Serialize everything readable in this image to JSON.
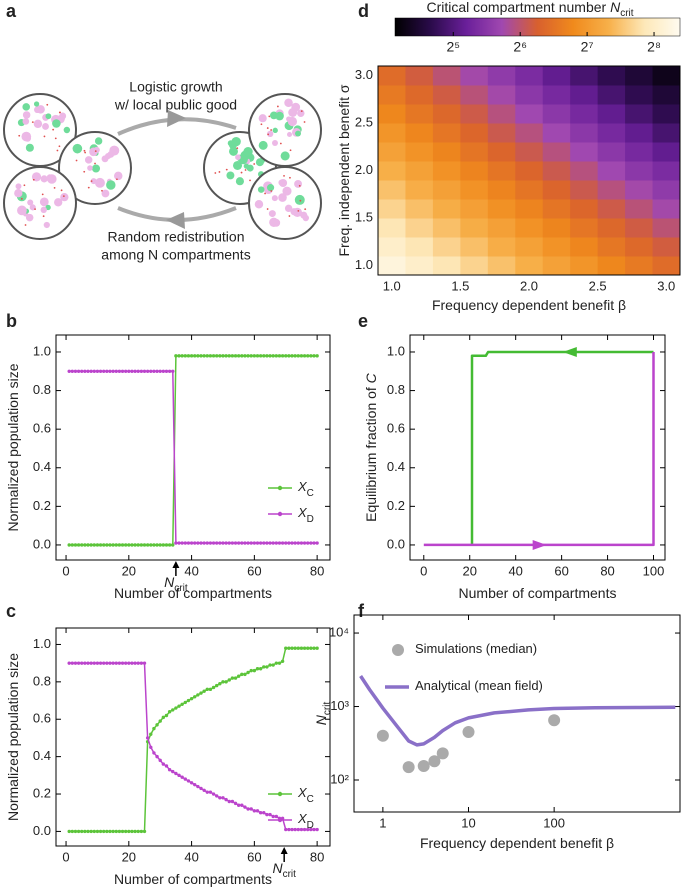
{
  "panel_a": {
    "label": "a",
    "top_text": [
      "Logistic growth",
      "w/ local public good"
    ],
    "bottom_text": [
      "Random redistribution",
      "among N compartments"
    ]
  },
  "chart_data": [
    {
      "type": "heatmap",
      "label": "d",
      "colorbar_title": "Critical compartment number ",
      "colorbar_title_var": "N",
      "colorbar_title_sub": "crit",
      "clim": [
        17.5,
        335
      ],
      "colorbar_log": true,
      "colorbar_ticks": [
        {
          "value": 32,
          "label": "2⁵"
        },
        {
          "value": 64,
          "label": "2⁶"
        },
        {
          "value": 128,
          "label": "2⁷"
        },
        {
          "value": 256,
          "label": "2⁸"
        }
      ],
      "colormap": [
        "#000000",
        "#2a0b4a",
        "#6a1f9a",
        "#a048b0",
        "#d8602e",
        "#f08a1c",
        "#f7b04a",
        "#fde8b8",
        "#fffbf0"
      ],
      "xlabel": "Frequency dependent benefit β",
      "ylabel": "Freq. independent benefit σ",
      "xlim": [
        0.9,
        3.1
      ],
      "ylim": [
        0.9,
        3.1
      ],
      "xticks": [
        {
          "value": 1,
          "label": "1.0"
        },
        {
          "value": 1.5,
          "label": "1.5"
        },
        {
          "value": 2,
          "label": "2.0"
        },
        {
          "value": 2.5,
          "label": "2.5"
        },
        {
          "value": 3,
          "label": "3.0"
        }
      ],
      "yticks": [
        {
          "value": 1,
          "label": "1.0"
        },
        {
          "value": 1.5,
          "label": "1.5"
        },
        {
          "value": 2,
          "label": "2.0"
        },
        {
          "value": 2.5,
          "label": "2.5"
        },
        {
          "value": 3,
          "label": "3.0"
        }
      ],
      "x": [
        1.0,
        1.2,
        1.4,
        1.6,
        1.8,
        2.0,
        2.2,
        2.4,
        2.6,
        2.8,
        3.0
      ],
      "y": [
        1.0,
        1.2,
        1.4,
        1.6,
        1.8,
        2.0,
        2.2,
        2.4,
        2.6,
        2.8,
        3.0
      ],
      "values": [
        [
          294,
          260,
          229,
          202,
          179,
          158,
          139,
          123,
          108,
          96,
          85
        ],
        [
          260,
          229,
          201,
          177,
          156,
          138,
          121,
          107,
          94,
          83,
          73
        ],
        [
          229,
          201,
          177,
          155,
          137,
          120,
          106,
          93,
          82,
          72,
          63
        ],
        [
          202,
          177,
          155,
          136,
          119,
          105,
          92,
          81,
          71,
          62,
          54
        ],
        [
          179,
          156,
          137,
          120,
          105,
          92,
          80,
          70,
          61,
          54,
          47
        ],
        [
          158,
          138,
          120,
          105,
          92,
          80,
          70,
          61,
          53,
          46,
          41
        ],
        [
          139,
          121,
          106,
          92,
          80,
          70,
          61,
          53,
          46,
          40,
          35
        ],
        [
          123,
          107,
          93,
          81,
          70,
          61,
          53,
          46,
          40,
          35,
          30
        ],
        [
          108,
          94,
          82,
          71,
          61,
          53,
          46,
          40,
          35,
          30,
          26
        ],
        [
          96,
          83,
          72,
          62,
          54,
          46,
          40,
          35,
          30,
          26,
          23
        ],
        [
          85,
          73,
          63,
          54,
          47,
          41,
          35,
          30,
          26,
          23,
          20
        ]
      ]
    },
    {
      "type": "line",
      "label": "b",
      "xlabel": "Number of compartments",
      "ylabel": "Normalized population size",
      "xlim": [
        -3.2,
        84.1
      ],
      "ylim": [
        -0.078,
        1.088
      ],
      "xticks": [
        0,
        20,
        40,
        60,
        80
      ],
      "yticks": [
        {
          "value": 0,
          "label": "0.0"
        },
        {
          "value": 0.2,
          "label": "0.2"
        },
        {
          "value": 0.4,
          "label": "0.4"
        },
        {
          "value": 0.6,
          "label": "0.6"
        },
        {
          "value": 0.8,
          "label": "0.8"
        },
        {
          "value": 1,
          "label": "1.0"
        }
      ],
      "legend": "center right",
      "annotation_var": "N",
      "annotation_sub": "crit",
      "annotation_x": 35,
      "x": [
        1,
        2,
        3,
        4,
        5,
        6,
        7,
        8,
        9,
        10,
        11,
        12,
        13,
        14,
        15,
        16,
        17,
        18,
        19,
        20,
        21,
        22,
        23,
        24,
        25,
        26,
        27,
        28,
        29,
        30,
        31,
        32,
        33,
        34,
        35,
        36,
        37,
        38,
        39,
        40,
        41,
        42,
        43,
        44,
        45,
        46,
        47,
        48,
        49,
        50,
        51,
        52,
        53,
        54,
        55,
        56,
        57,
        58,
        59,
        60,
        61,
        62,
        63,
        64,
        65,
        66,
        67,
        68,
        69,
        70,
        71,
        72,
        73,
        74,
        75,
        76,
        77,
        78,
        79,
        80
      ],
      "series": [
        {
          "name": "X",
          "name_sub": "C",
          "color": "#5cc43a",
          "markers": true,
          "values": [
            0,
            0,
            0,
            0,
            0,
            0,
            0,
            0,
            0,
            0,
            0,
            0,
            0,
            0,
            0,
            0,
            0,
            0,
            0,
            0,
            0,
            0,
            0,
            0,
            0,
            0,
            0,
            0,
            0,
            0,
            0,
            0,
            0,
            0,
            0.98,
            0.98,
            0.98,
            0.98,
            0.98,
            0.98,
            0.98,
            0.98,
            0.98,
            0.98,
            0.98,
            0.98,
            0.98,
            0.98,
            0.98,
            0.98,
            0.98,
            0.98,
            0.98,
            0.98,
            0.98,
            0.98,
            0.98,
            0.98,
            0.98,
            0.98,
            0.98,
            0.98,
            0.98,
            0.98,
            0.98,
            0.98,
            0.98,
            0.98,
            0.98,
            0.98,
            0.98,
            0.98,
            0.98,
            0.98,
            0.98,
            0.98,
            0.98,
            0.98,
            0.98,
            0.98
          ]
        },
        {
          "name": "X",
          "name_sub": "D",
          "color": "#bb44cc",
          "markers": true,
          "values": [
            0.9,
            0.9,
            0.9,
            0.9,
            0.9,
            0.9,
            0.9,
            0.9,
            0.9,
            0.9,
            0.9,
            0.9,
            0.9,
            0.9,
            0.9,
            0.9,
            0.9,
            0.9,
            0.9,
            0.9,
            0.9,
            0.9,
            0.9,
            0.9,
            0.9,
            0.9,
            0.9,
            0.9,
            0.9,
            0.9,
            0.9,
            0.9,
            0.9,
            0.9,
            0.01,
            0.01,
            0.01,
            0.01,
            0.01,
            0.01,
            0.01,
            0.01,
            0.01,
            0.01,
            0.01,
            0.01,
            0.01,
            0.01,
            0.01,
            0.01,
            0.01,
            0.01,
            0.01,
            0.01,
            0.01,
            0.01,
            0.01,
            0.01,
            0.01,
            0.01,
            0.01,
            0.01,
            0.01,
            0.01,
            0.01,
            0.01,
            0.01,
            0.01,
            0.01,
            0.01,
            0.01,
            0.01,
            0.01,
            0.01,
            0.01,
            0.01,
            0.01,
            0.01,
            0.01,
            0.01
          ]
        }
      ]
    },
    {
      "type": "line",
      "label": "e",
      "xlabel": "Number of compartments",
      "ylabel": "Equilibrium fraction of ",
      "ylabel_var": "C",
      "xlim": [
        -6,
        105
      ],
      "ylim": [
        -0.078,
        1.088
      ],
      "xticks": [
        0,
        20,
        40,
        60,
        80,
        100
      ],
      "yticks": [
        {
          "value": 0,
          "label": "0.0"
        },
        {
          "value": 0.2,
          "label": "0.2"
        },
        {
          "value": 0.4,
          "label": "0.4"
        },
        {
          "value": 0.6,
          "label": "0.6"
        },
        {
          "value": 0.8,
          "label": "0.8"
        },
        {
          "value": 1,
          "label": "1.0"
        }
      ],
      "arrows": true,
      "series": [
        {
          "color": "#44bb33",
          "x": [
            100,
            28,
            27,
            26,
            21,
            21
          ],
          "values": [
            1.0,
            1.0,
            0.98,
            0.98,
            0.98,
            0
          ]
        },
        {
          "color": "#bb44cc",
          "x": [
            0,
            100,
            100
          ],
          "values": [
            0,
            0,
            1.0
          ]
        }
      ]
    },
    {
      "type": "line",
      "label": "c",
      "xlabel": "Number of compartments",
      "ylabel": "Normalized population size",
      "xlim": [
        -3.2,
        84.1
      ],
      "ylim": [
        -0.078,
        1.088
      ],
      "xticks": [
        0,
        20,
        40,
        60,
        80
      ],
      "yticks": [
        {
          "value": 0,
          "label": "0.0"
        },
        {
          "value": 0.2,
          "label": "0.2"
        },
        {
          "value": 0.4,
          "label": "0.4"
        },
        {
          "value": 0.6,
          "label": "0.6"
        },
        {
          "value": 0.8,
          "label": "0.8"
        },
        {
          "value": 1,
          "label": "1.0"
        }
      ],
      "legend": "lower right",
      "annotation_var": "N",
      "annotation_sub": "crit",
      "annotation_x": 69.5,
      "x": [
        1,
        2,
        3,
        4,
        5,
        6,
        7,
        8,
        9,
        10,
        11,
        12,
        13,
        14,
        15,
        16,
        17,
        18,
        19,
        20,
        21,
        22,
        23,
        24,
        25,
        26,
        27,
        28,
        29,
        30,
        31,
        32,
        33,
        34,
        35,
        36,
        37,
        38,
        39,
        40,
        41,
        42,
        43,
        44,
        45,
        46,
        47,
        48,
        49,
        50,
        51,
        52,
        53,
        54,
        55,
        56,
        57,
        58,
        59,
        60,
        61,
        62,
        63,
        64,
        65,
        66,
        67,
        68,
        69,
        70,
        71,
        72,
        73,
        74,
        75,
        76,
        77,
        78,
        79,
        80
      ],
      "series": [
        {
          "name": "X",
          "name_sub": "C",
          "color": "#5cc43a",
          "markers": true,
          "values": [
            0,
            0,
            0,
            0,
            0,
            0,
            0,
            0,
            0,
            0,
            0,
            0,
            0,
            0,
            0,
            0,
            0,
            0,
            0,
            0,
            0,
            0,
            0,
            0,
            0,
            0.48,
            0.52,
            0.55,
            0.57,
            0.59,
            0.61,
            0.62,
            0.64,
            0.65,
            0.66,
            0.67,
            0.68,
            0.69,
            0.7,
            0.71,
            0.72,
            0.73,
            0.74,
            0.75,
            0.76,
            0.76,
            0.77,
            0.78,
            0.79,
            0.8,
            0.8,
            0.81,
            0.82,
            0.82,
            0.83,
            0.84,
            0.84,
            0.85,
            0.86,
            0.86,
            0.87,
            0.87,
            0.88,
            0.88,
            0.89,
            0.89,
            0.9,
            0.9,
            0.91,
            0.98,
            0.98,
            0.98,
            0.98,
            0.98,
            0.98,
            0.98,
            0.98,
            0.98,
            0.98,
            0.98
          ]
        },
        {
          "name": "X",
          "name_sub": "D",
          "color": "#bb44cc",
          "markers": true,
          "values": [
            0.9,
            0.9,
            0.9,
            0.9,
            0.9,
            0.9,
            0.9,
            0.9,
            0.9,
            0.9,
            0.9,
            0.9,
            0.9,
            0.9,
            0.9,
            0.9,
            0.9,
            0.9,
            0.9,
            0.9,
            0.9,
            0.9,
            0.9,
            0.9,
            0.9,
            0.5,
            0.45,
            0.42,
            0.4,
            0.38,
            0.36,
            0.35,
            0.33,
            0.32,
            0.31,
            0.3,
            0.29,
            0.28,
            0.27,
            0.26,
            0.25,
            0.24,
            0.23,
            0.22,
            0.21,
            0.21,
            0.2,
            0.19,
            0.18,
            0.18,
            0.17,
            0.16,
            0.16,
            0.15,
            0.14,
            0.14,
            0.13,
            0.12,
            0.12,
            0.11,
            0.11,
            0.1,
            0.1,
            0.09,
            0.09,
            0.08,
            0.08,
            0.07,
            0.07,
            0.01,
            0.01,
            0.01,
            0.01,
            0.01,
            0.01,
            0.01,
            0.01,
            0.01,
            0.01,
            0.01
          ]
        }
      ]
    },
    {
      "type": "line",
      "label": "f",
      "xlabel": "Frequency dependent benefit β",
      "ylabel": "N",
      "ylabel_sub": "crit",
      "xlog": true,
      "ylog": true,
      "xlim": [
        0.46,
        2950
      ],
      "ylim": [
        36.7,
        17600
      ],
      "xticks": [
        1,
        10,
        100
      ],
      "yticks": [
        {
          "value": 100,
          "label": "10²"
        },
        {
          "value": 1000,
          "label": "10³"
        },
        {
          "value": 10000,
          "label": "10⁴"
        }
      ],
      "legend": "upper center",
      "series": [
        {
          "name": "Simulations (median)",
          "type": "scatter",
          "color": "#aaaaaa",
          "x": [
            1,
            2,
            3,
            4,
            5,
            10,
            100
          ],
          "values": [
            400,
            150,
            155,
            180,
            230,
            450,
            650
          ]
        },
        {
          "name": "Analytical (mean field)",
          "color": "#8a70c8",
          "x": [
            0.55,
            0.7,
            1,
            1.5,
            2,
            2.5,
            3,
            4,
            5,
            7,
            10,
            20,
            50,
            100,
            300,
            1000,
            2600
          ],
          "values": [
            2600,
            1700,
            950,
            520,
            340,
            300,
            310,
            380,
            470,
            600,
            700,
            820,
            900,
            940,
            960,
            970,
            980
          ]
        }
      ]
    }
  ]
}
